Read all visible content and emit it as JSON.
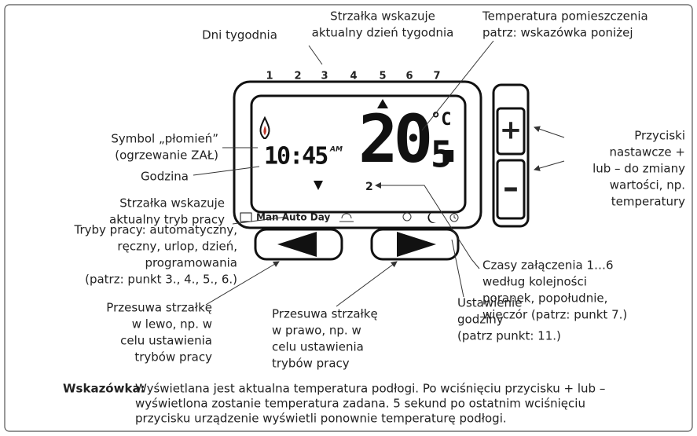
{
  "day_label": "Dni tygodnia",
  "days": [
    "1",
    "2",
    "3",
    "4",
    "5",
    "6",
    "7"
  ],
  "day_arrow_label": [
    "Strzałka wskazuje",
    "aktualny dzień tygodnia"
  ],
  "temp_label": [
    "Temperatura pomieszczenia",
    "patrz: wskazówka poniżej"
  ],
  "flame_label": [
    "Symbol „płomień”",
    "(ogrzewanie ZAŁ)"
  ],
  "clock_label": "Godzina",
  "mode_arrow_label": [
    "Strzałka wskazuje",
    "aktualny tryb pracy"
  ],
  "modes_label": [
    "Tryby pracy: automatyczny,",
    "ręczny, urlop, dzień,",
    "programowania",
    "(patrz: punkt 3., 4., 5., 6.)"
  ],
  "buttons_label": [
    "Przyciski",
    "nastawcze +",
    "lub – do zmiany",
    "wartości, np.",
    "temperatury"
  ],
  "times_label": [
    "Czasy załączenia 1…6",
    "według kolejności",
    "poranek, popołudnie,",
    "wieczór (patrz: punkt 7.)"
  ],
  "left_label": [
    "Przesuwa strzałkę",
    "w lewo, np. w",
    "celu ustawienia",
    "trybów pracy"
  ],
  "right_label": [
    "Przesuwa strzałkę",
    "w prawo, np. w",
    "celu ustawienia",
    "trybów pracy"
  ],
  "clock_set_label": [
    "Ustawienie",
    "godziny",
    "(patrz punkt: 11.)"
  ],
  "display": {
    "time": "10:45",
    "ampm": "AM",
    "temp_main": "20.",
    "temp_decimal": "5",
    "unit": "°C",
    "period": "2",
    "modes": "Man Auto Day",
    "plus": "+",
    "minus": "–"
  },
  "note": {
    "heading": "Wskazówka:",
    "lines": [
      "Wyświetlana jest aktualna temperatura podłogi. Po wciśnięciu przycisku + lub –",
      "wyświetlona zostanie temperatura zadana. 5 sekund po ostatnim wciśnięciu",
      "przycisku urządzenie wyświetli ponownie temperaturę podłogi."
    ]
  }
}
